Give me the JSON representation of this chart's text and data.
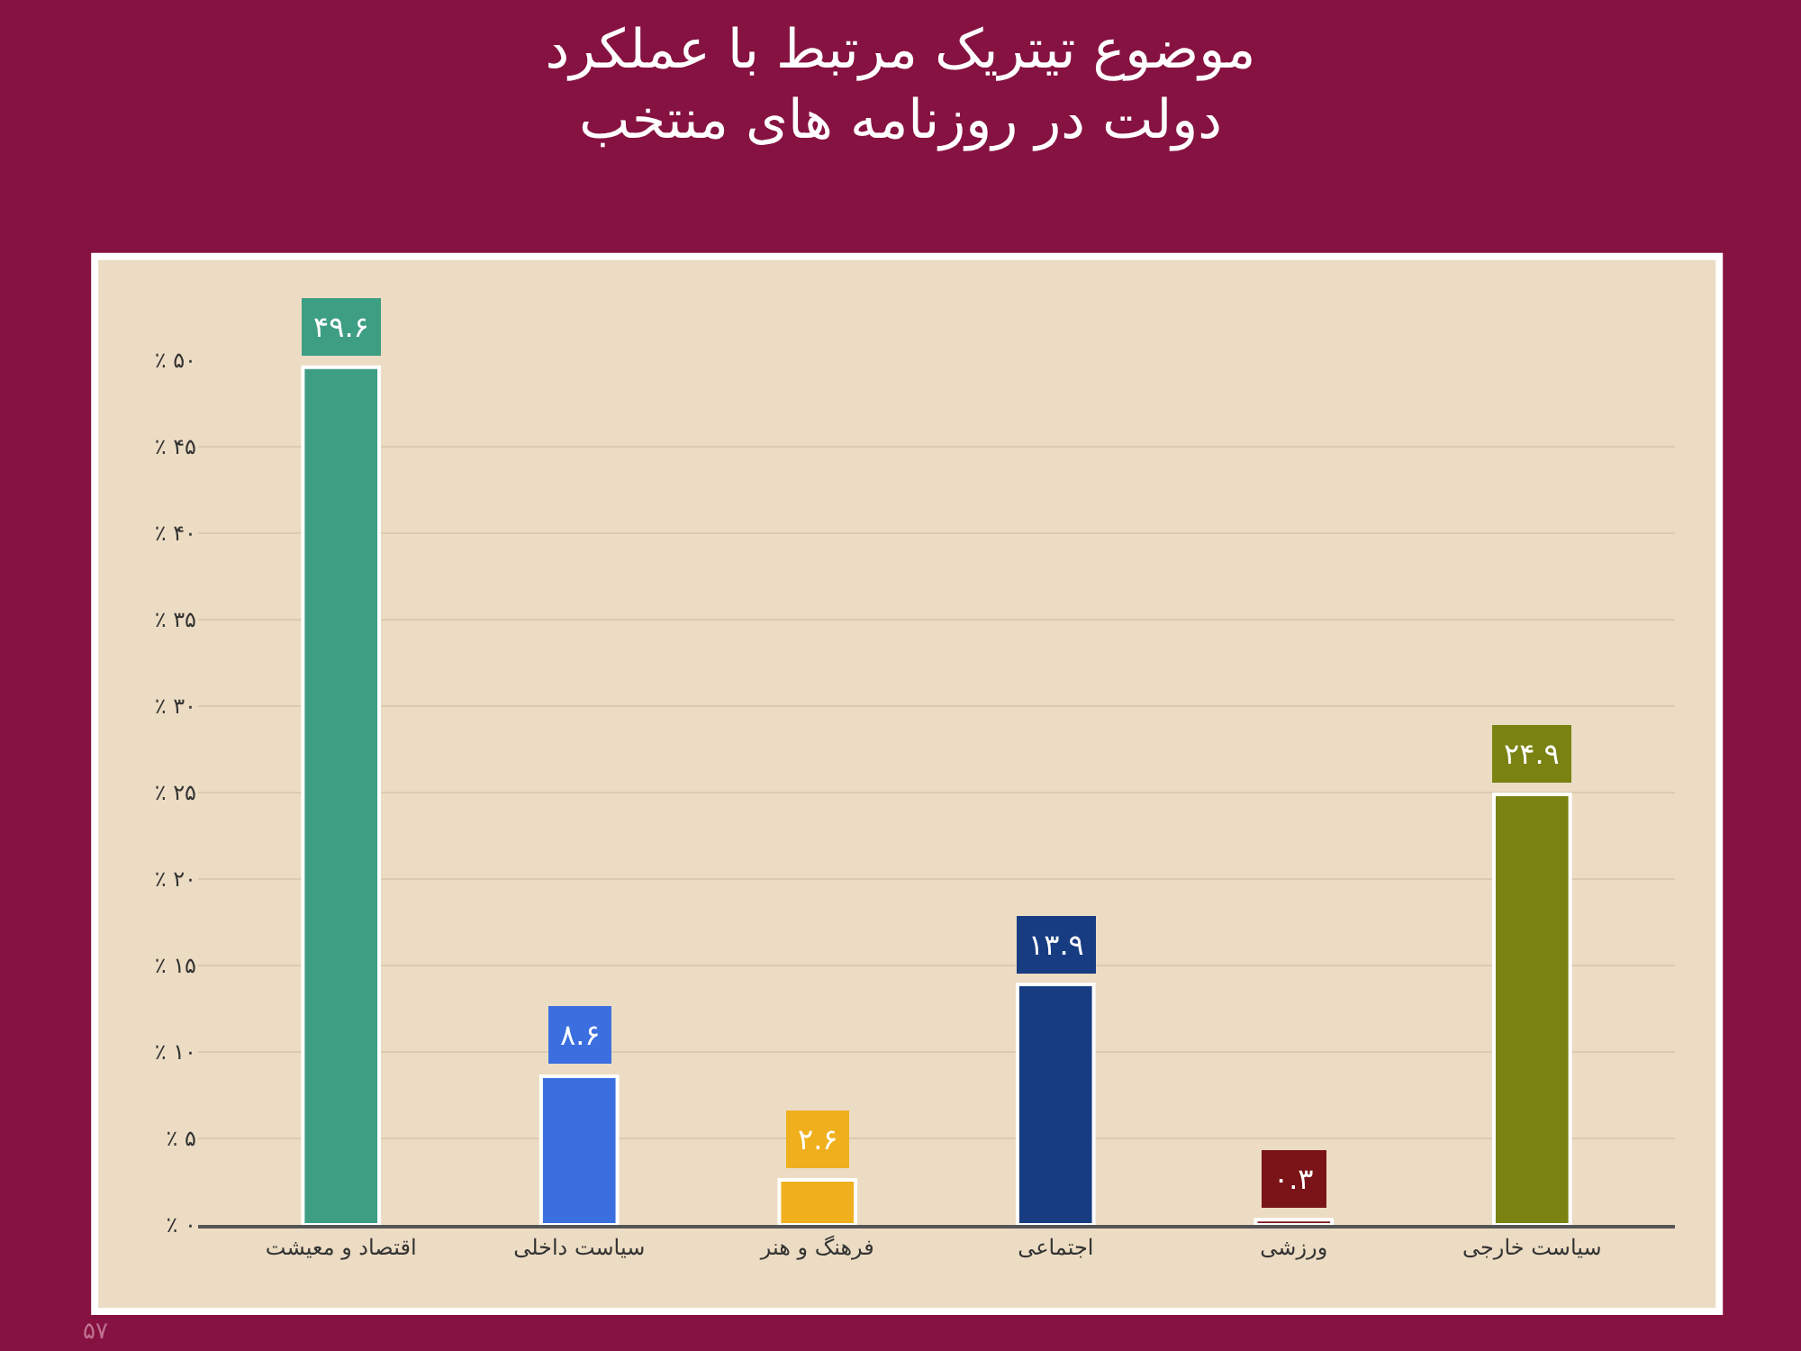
{
  "chart_data": {
    "type": "bar",
    "title": "موضوع تیتریک مرتبط با عملکرد\nدولت در روزنامه های منتخب",
    "categories": [
      "اقتصاد و معیشت",
      "سیاست داخلی",
      "فرهنگ و هنر",
      "اجتماعی",
      "ورزشی",
      "سیاست خارجی"
    ],
    "values": [
      49.6,
      8.6,
      2.6,
      13.9,
      0.3,
      24.9
    ],
    "colors": [
      "#3e9e84",
      "#3b6fe0",
      "#f0b01e",
      "#173c82",
      "#7a1418",
      "#7a8212"
    ],
    "value_labels": [
      "۴۹.۶",
      "۸.۶",
      "۲.۶",
      "۱۳.۹",
      "۰.۳",
      "۲۴.۹"
    ],
    "ylim": [
      0,
      50
    ],
    "yticks": [
      {
        "value": 0,
        "label": "٪ ۰"
      },
      {
        "value": 5,
        "label": "٪ ۵"
      },
      {
        "value": 10,
        "label": "٪ ۱۰"
      },
      {
        "value": 15,
        "label": "٪ ۱۵"
      },
      {
        "value": 20,
        "label": "٪ ۲۰"
      },
      {
        "value": 25,
        "label": "٪ ۲۵"
      },
      {
        "value": 30,
        "label": "٪ ۳۰"
      },
      {
        "value": 35,
        "label": "٪ ۳۵"
      },
      {
        "value": 40,
        "label": "٪ ۴۰"
      },
      {
        "value": 45,
        "label": "٪ ۴۵"
      },
      {
        "value": 50,
        "label": "٪ ۵۰"
      }
    ],
    "grid": "y",
    "annotations": [
      "۵۷"
    ]
  }
}
